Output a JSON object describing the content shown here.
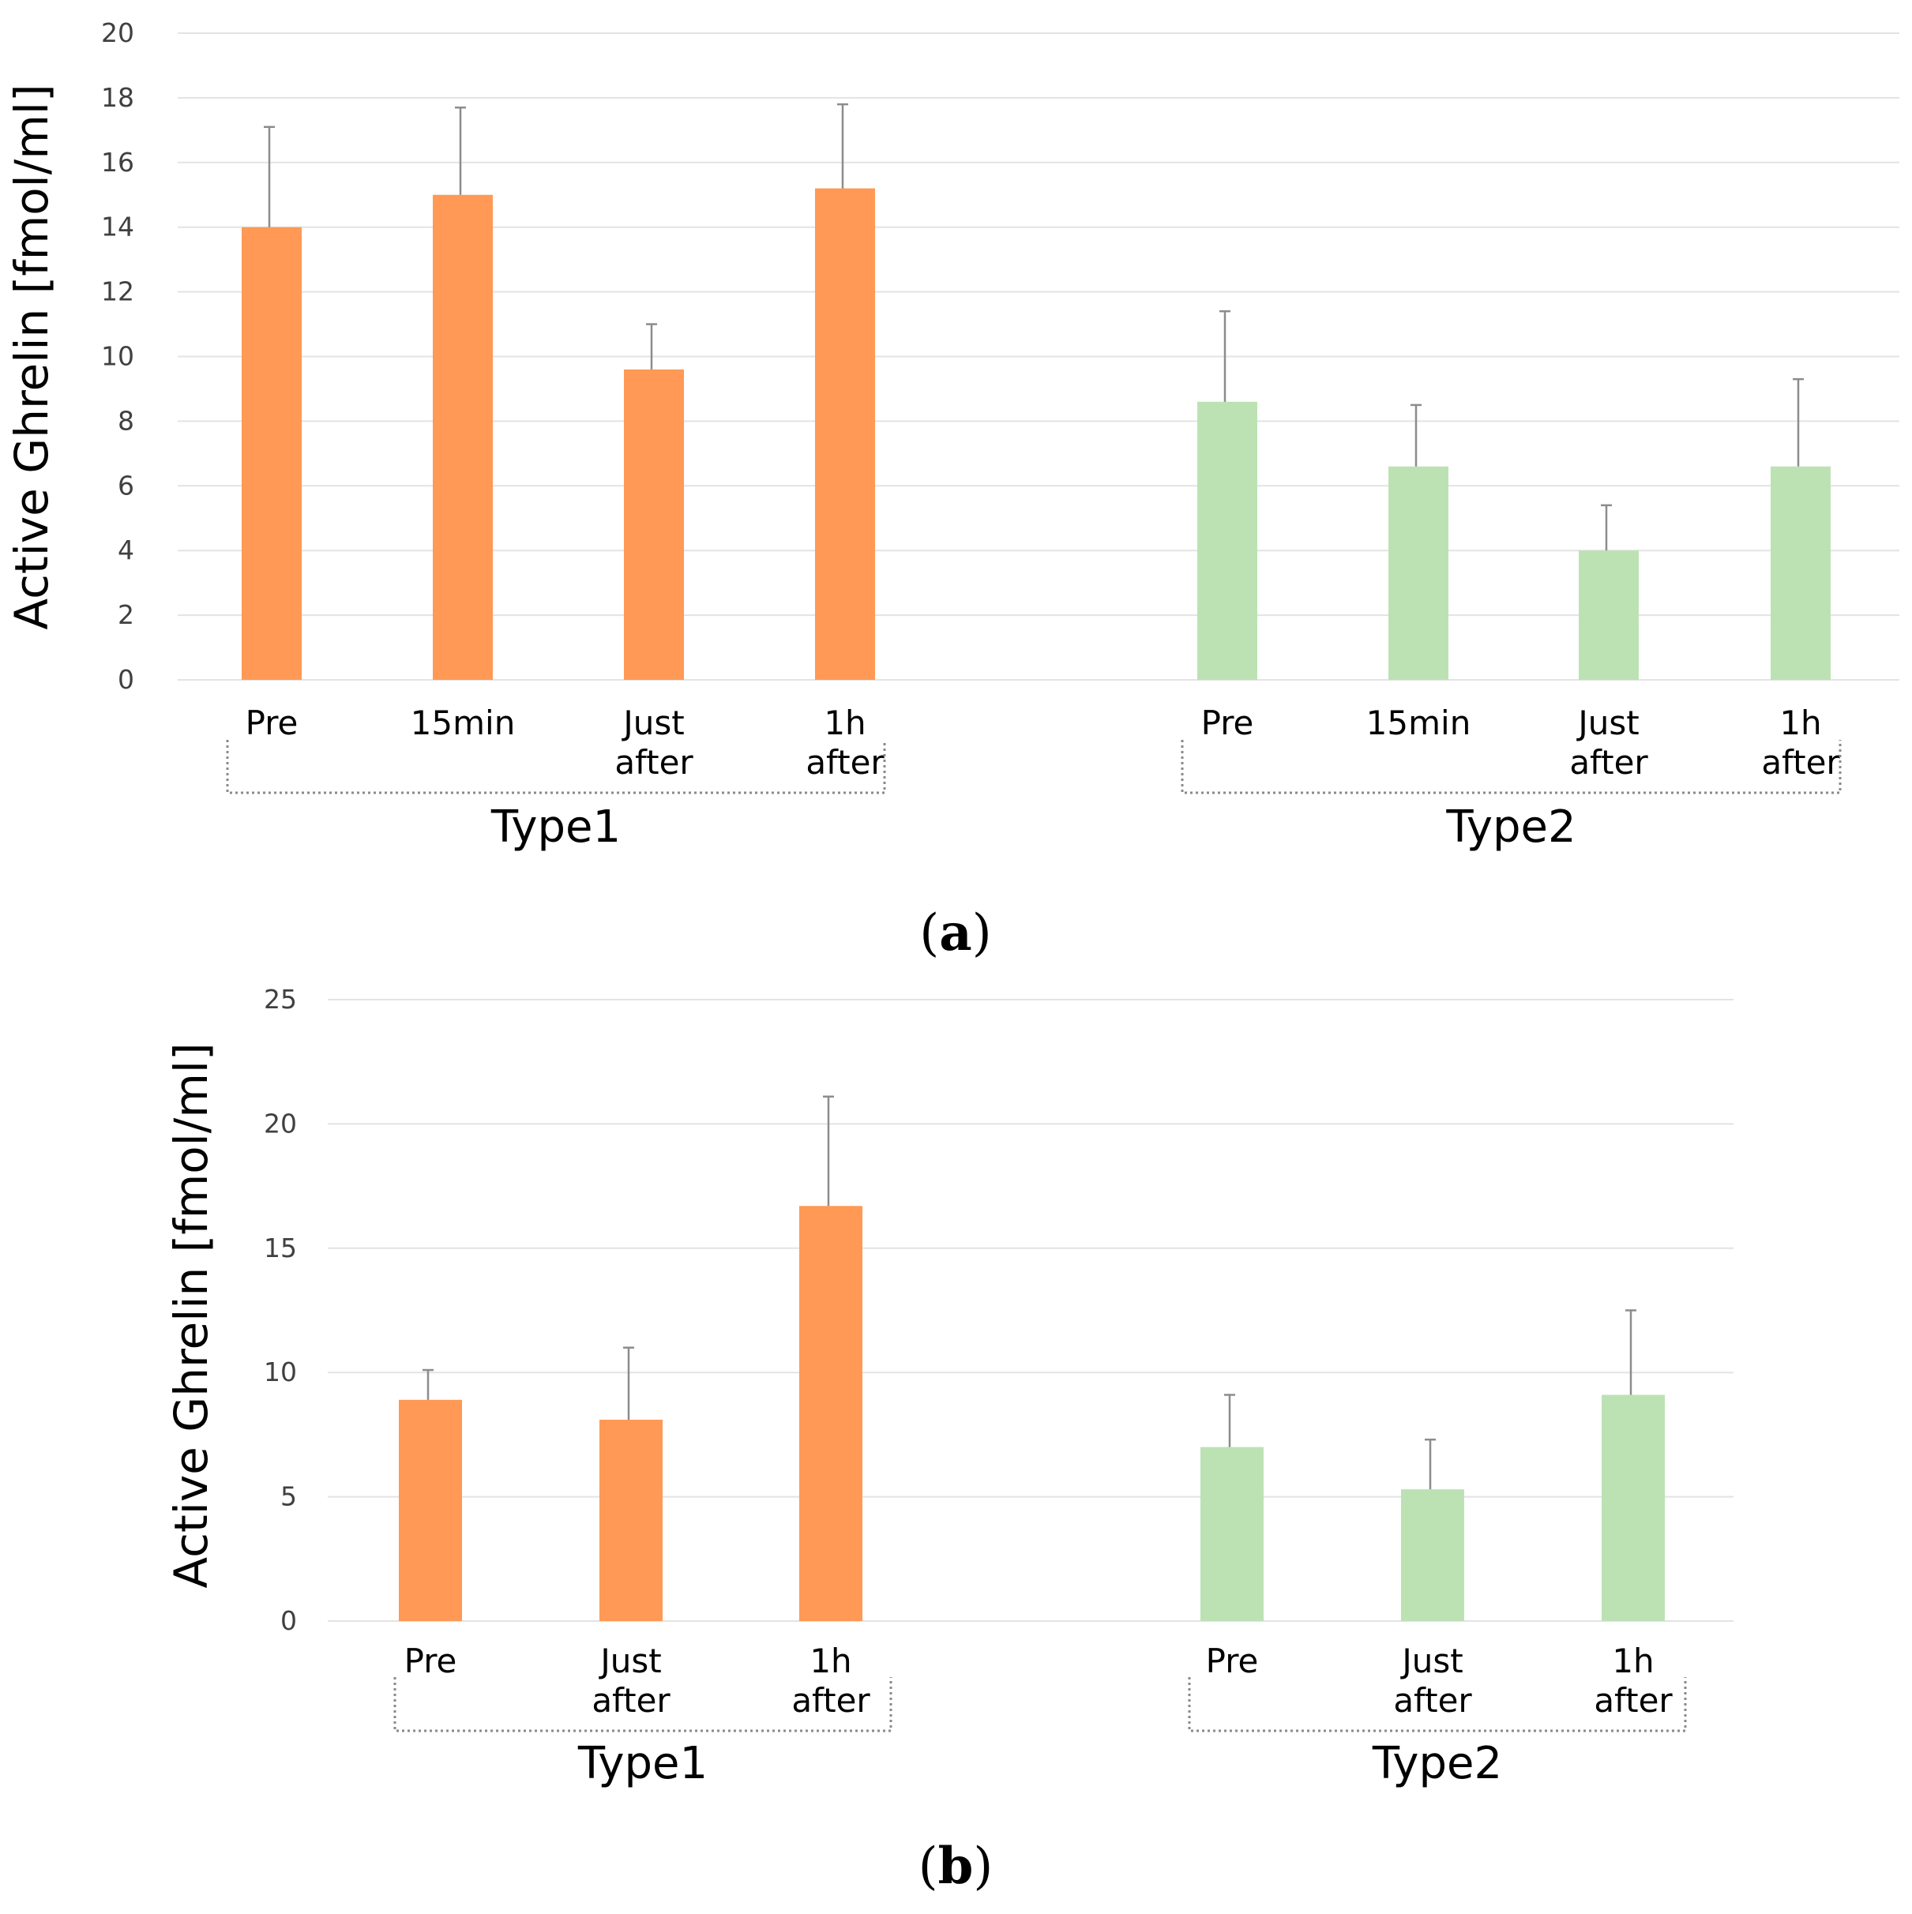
{
  "colors": {
    "type1": "#ff9955",
    "type2": "#bce2b4",
    "grid": "#e3e3e3",
    "error_bar": "#8c8c8c"
  },
  "chart_data": [
    {
      "type": "bar",
      "panel_label": "a",
      "ylabel": "Active Ghrelin [fmol/ml]",
      "ylim": [
        0,
        20
      ],
      "yticks": [
        "0",
        "2",
        "4",
        "6",
        "8",
        "10",
        "12",
        "14",
        "16",
        "18",
        "20"
      ],
      "grid": true,
      "groups": [
        {
          "name": "Type1",
          "color_key": "type1",
          "categories": [
            [
              "Pre"
            ],
            [
              "15min"
            ],
            [
              "Just",
              "after"
            ],
            [
              "1h",
              "after"
            ]
          ],
          "values": [
            14.0,
            15.0,
            9.6,
            15.2
          ],
          "errors": [
            3.1,
            2.7,
            1.4,
            2.6
          ]
        },
        {
          "name": "Type2",
          "color_key": "type2",
          "categories": [
            [
              "Pre"
            ],
            [
              "15min"
            ],
            [
              "Just",
              "after"
            ],
            [
              "1h",
              "after"
            ]
          ],
          "values": [
            8.6,
            6.6,
            4.0,
            6.6
          ],
          "errors": [
            2.8,
            1.9,
            1.4,
            2.7
          ]
        }
      ]
    },
    {
      "type": "bar",
      "panel_label": "b",
      "ylabel": "Active Ghrelin [fmol/ml]",
      "ylim": [
        0,
        25
      ],
      "yticks": [
        "0",
        "5",
        "10",
        "15",
        "20",
        "25"
      ],
      "grid": true,
      "groups": [
        {
          "name": "Type1",
          "color_key": "type1",
          "categories": [
            [
              "Pre"
            ],
            [
              "Just",
              "after"
            ],
            [
              "1h",
              "after"
            ]
          ],
          "values": [
            8.9,
            8.1,
            16.7
          ],
          "errors": [
            1.2,
            2.9,
            4.4
          ]
        },
        {
          "name": "Type2",
          "color_key": "type2",
          "categories": [
            [
              "Pre"
            ],
            [
              "Just",
              "after"
            ],
            [
              "1h",
              "after"
            ]
          ],
          "values": [
            7.0,
            5.3,
            9.1
          ],
          "errors": [
            2.1,
            2.0,
            3.4
          ]
        }
      ]
    }
  ]
}
